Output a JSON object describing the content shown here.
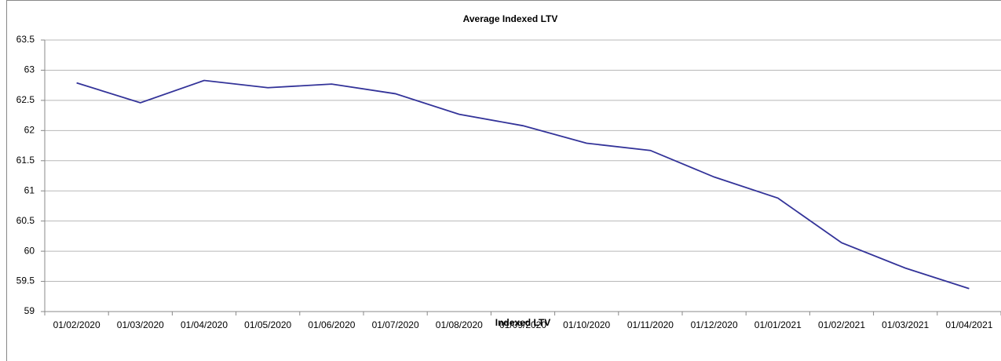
{
  "chart_data": {
    "type": "line",
    "title": "Average Indexed LTV",
    "x_label": "Indexed LTV",
    "categories": [
      "01/02/2020",
      "01/03/2020",
      "01/04/2020",
      "01/05/2020",
      "01/06/2020",
      "01/07/2020",
      "01/08/2020",
      "01/09/2020",
      "01/10/2020",
      "01/11/2020",
      "01/12/2020",
      "01/01/2021",
      "01/02/2021",
      "01/03/2021",
      "01/04/2021"
    ],
    "series": [
      {
        "name": "Indexed LTV",
        "color": "#333399",
        "values": [
          62.79,
          62.46,
          62.83,
          62.71,
          62.77,
          62.61,
          62.27,
          62.08,
          61.79,
          61.67,
          61.23,
          60.88,
          60.14,
          59.72,
          59.38
        ]
      }
    ],
    "ylim": [
      59,
      63.5
    ],
    "yticks": [
      59,
      59.5,
      60,
      60.5,
      61,
      61.5,
      62,
      62.5,
      63,
      63.5
    ],
    "grid": true
  }
}
